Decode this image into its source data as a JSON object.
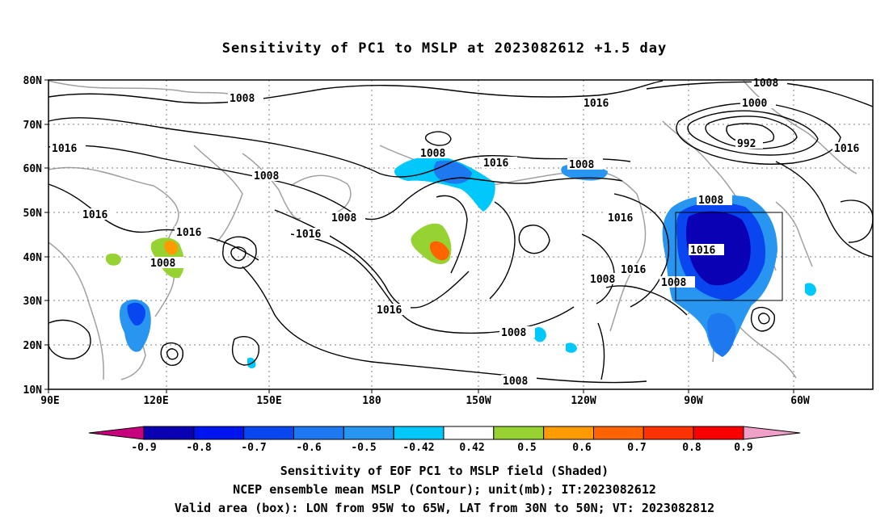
{
  "title": "Sensitivity of PC1 to MSLP at 2023082612 +1.5 day",
  "lat_labels": [
    "80N",
    "70N",
    "60N",
    "50N",
    "40N",
    "30N",
    "20N",
    "10N"
  ],
  "lon_labels": [
    "90E",
    "120E",
    "150E",
    "180",
    "150W",
    "120W",
    "90W",
    "60W"
  ],
  "isobar_labels": [
    "1008",
    "1016",
    "1008",
    "1000",
    "992",
    "1016",
    "1016",
    "1008",
    "1008",
    "1008",
    "1016",
    "1008",
    "1016",
    "1016",
    "1008",
    "1016",
    "1008",
    "1016",
    "1016",
    "1016",
    "1008",
    "1016",
    "1008",
    "1008"
  ],
  "colorbar_labels": [
    "-0.9",
    "-0.8",
    "-0.7",
    "-0.6",
    "-0.5",
    "-0.42",
    "0.42",
    "0.5",
    "0.6",
    "0.7",
    "0.8",
    "0.9"
  ],
  "colorbar_colors": [
    "#0a00b4",
    "#0014f0",
    "#0a46f0",
    "#1e78f0",
    "#2896f0",
    "#00c8fa",
    "#ffffff",
    "#96d232",
    "#ff9b00",
    "#ff6400",
    "#ff3200",
    "#fa0000"
  ],
  "colorbar_end_colors": {
    "low": "#c8007d",
    "high": "#f0a0c8"
  },
  "captions": [
    "Sensitivity of EOF PC1 to MSLP field (Shaded)",
    "NCEP ensemble mean MSLP (Contour); unit(mb); IT:2023082612",
    "Valid area (box): LON from 95W to 65W, LAT from 30N to 50N; VT: 2023082812"
  ]
}
